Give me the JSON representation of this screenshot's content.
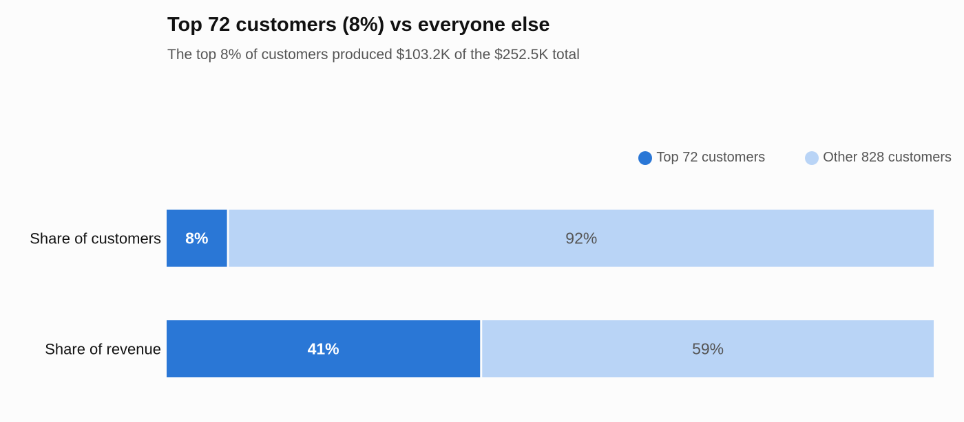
{
  "chart_data": {
    "type": "bar",
    "orientation": "horizontal",
    "stacked": true,
    "title": "Top 72 customers (8%) vs everyone else",
    "subtitle": "The top 8% of customers produced $103.2K of the $252.5K total",
    "categories": [
      "Share of customers",
      "Share of revenue"
    ],
    "series": [
      {
        "name": "Top 72 customers",
        "values": [
          8,
          41
        ],
        "labels": [
          "8%",
          "41%"
        ],
        "color": "#2a77d6",
        "label_color": "#ffffff"
      },
      {
        "name": "Other 828 customers",
        "values": [
          92,
          59
        ],
        "labels": [
          "92%",
          "59%"
        ],
        "color": "#b9d4f6",
        "label_color": "#555555"
      }
    ],
    "xlim": [
      0,
      100
    ],
    "legend_position": "top-right",
    "grid": false
  }
}
